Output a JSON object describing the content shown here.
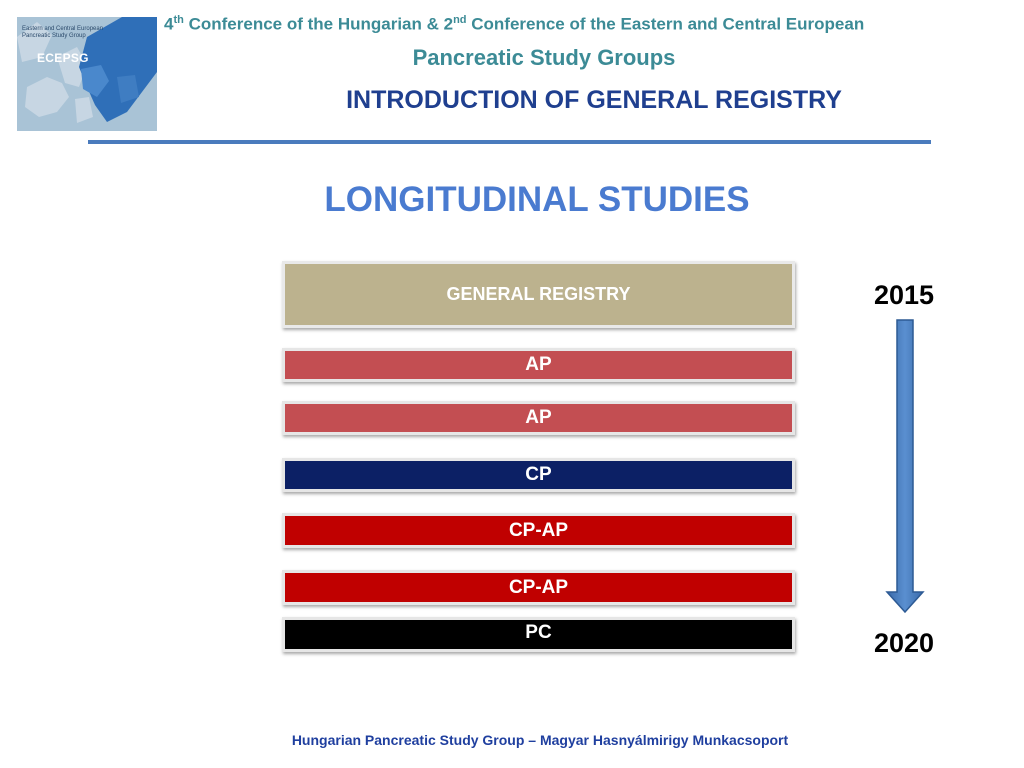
{
  "logo": {
    "text": "Eastern and Central European Pancreatic Study Group",
    "acronym": "ECEPSG"
  },
  "header": {
    "ordinal_1": "4",
    "sup_1": "th",
    "text_1": " Conference of the Hungarian & 2",
    "sup_2": "nd",
    "text_2": " Conference of the Eastern and Central European",
    "line2": "Pancreatic Study Groups",
    "subtitle": "INTRODUCTION OF GENERAL REGISTRY"
  },
  "main": {
    "title": "LONGITUDINAL STUDIES",
    "bars": {
      "registry": "GENERAL REGISTRY",
      "ap_1": "AP",
      "ap_2": "AP",
      "cp": "CP",
      "cpap_1": "CP-AP",
      "cpap_2": "CP-AP",
      "pc": "PC"
    },
    "timeline": {
      "start": "2015",
      "end": "2020"
    }
  },
  "footer": {
    "text": "Hungarian Pancreatic Study Group – Magyar Hasnyálmirigy Munkacsoport"
  },
  "colors": {
    "teal": "#3c8b96",
    "navy": "#1f3f8f",
    "accent_blue": "#4a7bd0",
    "registry": "#bcb28e",
    "ap": "#c34e52",
    "cp": "#0c2065",
    "cpap": "#c00000",
    "pc": "#000000"
  }
}
